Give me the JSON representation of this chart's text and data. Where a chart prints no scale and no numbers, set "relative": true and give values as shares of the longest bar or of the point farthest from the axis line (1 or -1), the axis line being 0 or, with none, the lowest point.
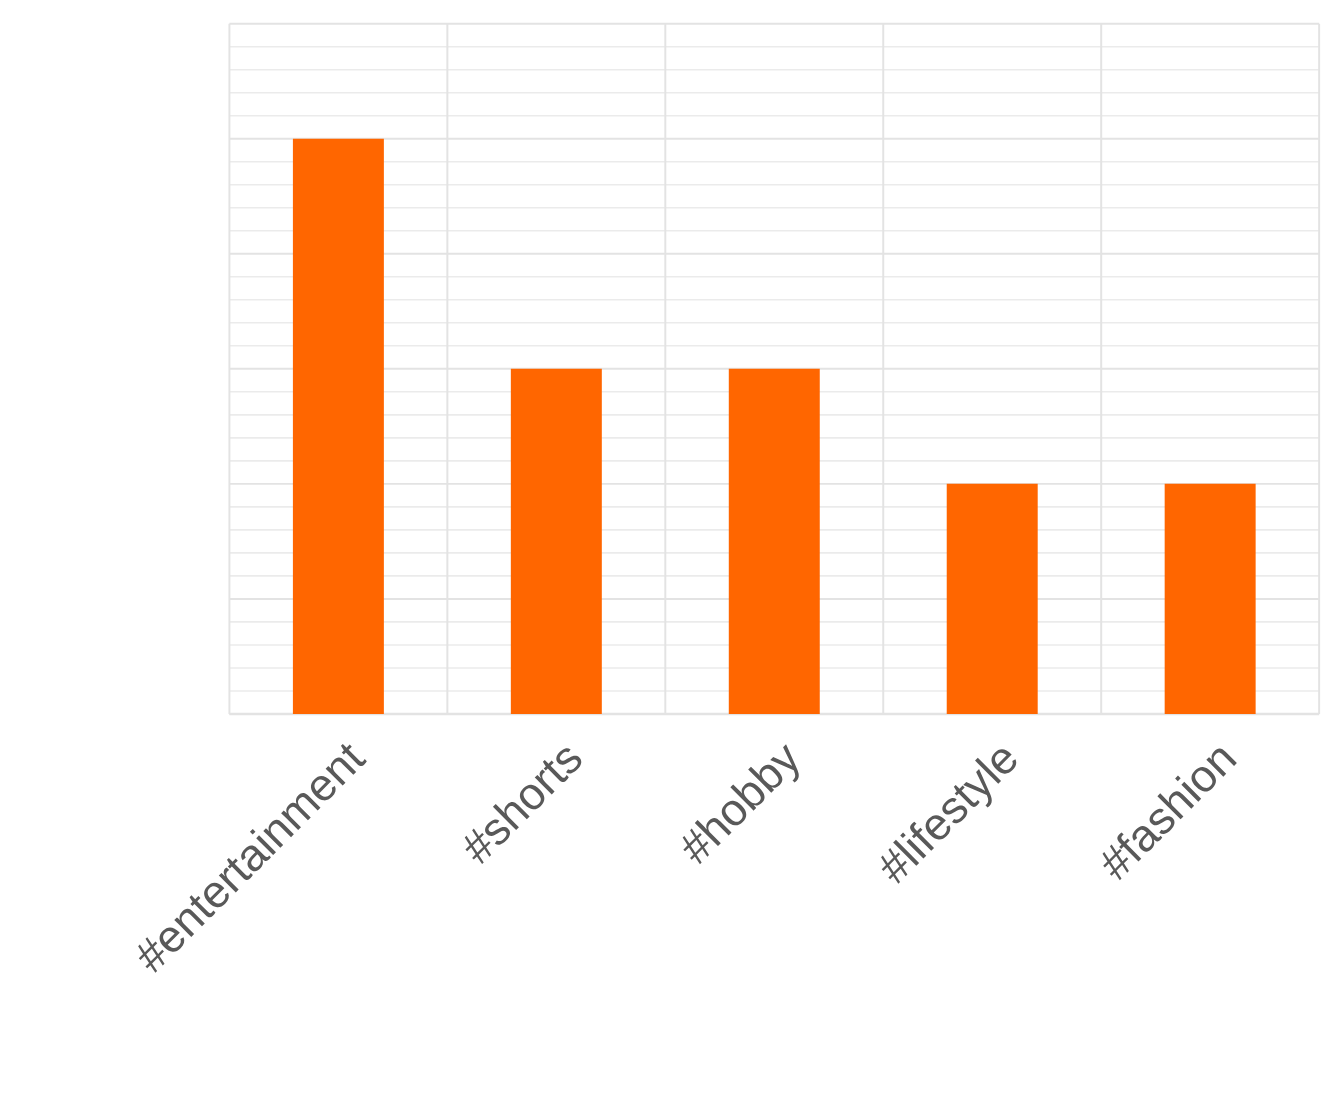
{
  "chart_data": {
    "type": "bar",
    "relative": true,
    "grid": true,
    "color": "#ff6600",
    "categories": [
      "#entertainment",
      "#shorts",
      "#hobby",
      "#lifestyle",
      "#fashion"
    ],
    "values": [
      1,
      0.6,
      0.6,
      0.4,
      0.4
    ]
  }
}
